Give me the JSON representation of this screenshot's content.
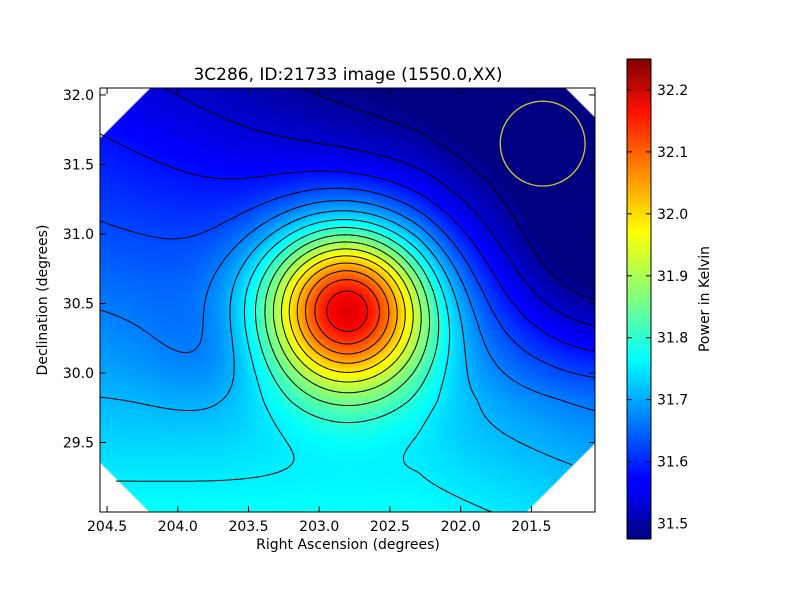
{
  "chart_data": {
    "type": "heatmap",
    "title": "3C286, ID:21733 image (1550.0,XX)",
    "xlabel": "Right Ascension (degrees)",
    "ylabel": "Declination (degrees)",
    "xlim": [
      204.55,
      201.05
    ],
    "ylim": [
      29.0,
      32.05
    ],
    "x_ticks": [
      204.5,
      204.0,
      203.5,
      203.0,
      202.5,
      202.0,
      201.5
    ],
    "x_tick_labels": [
      "204.5",
      "204.0",
      "203.5",
      "203.0",
      "202.5",
      "202.0",
      "201.5"
    ],
    "y_ticks": [
      29.5,
      30.0,
      30.5,
      31.0,
      31.5,
      32.0
    ],
    "y_tick_labels": [
      "29.5",
      "30.0",
      "30.5",
      "31.0",
      "31.5",
      "32.0"
    ],
    "colorbar": {
      "label": "Power in Kelvin",
      "range": [
        31.475,
        32.25
      ],
      "ticks": [
        31.5,
        31.6,
        31.7,
        31.8,
        31.9,
        32.0,
        32.1,
        32.2
      ],
      "tick_labels": [
        "31.5",
        "31.6",
        "31.7",
        "31.8",
        "31.9",
        "32.0",
        "32.1",
        "32.2"
      ],
      "colormap": "jet"
    },
    "peak": {
      "ra": 202.8,
      "dec": 30.48,
      "value": 32.25
    },
    "secondary_low": {
      "ra": 203.7,
      "dec": 30.15,
      "value": 31.68
    },
    "minimum_region": {
      "ra": 201.05,
      "dec": 30.8,
      "value": 31.48
    },
    "beam_marker": {
      "ra": 201.42,
      "dec": 31.65,
      "radius_deg": 0.3,
      "color": "#d4c43a"
    },
    "contour_count": 18
  }
}
